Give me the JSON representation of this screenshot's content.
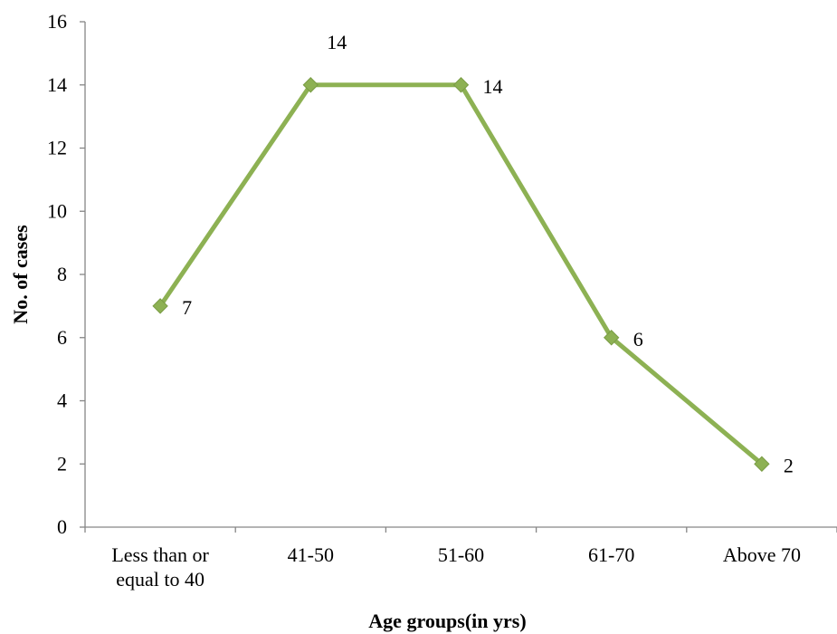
{
  "chart_data": {
    "type": "line",
    "categories": [
      [
        "Less than or",
        "equal to 40"
      ],
      [
        "41-50"
      ],
      [
        "51-60"
      ],
      [
        "61-70"
      ],
      [
        "Above 70"
      ]
    ],
    "series": [
      {
        "values": [
          7,
          14,
          14,
          6,
          2
        ],
        "color": "#8DB153",
        "marker": "diamond"
      }
    ],
    "data_labels": [
      "7",
      "14",
      "14",
      "6",
      "2"
    ],
    "xlabel": "Age groups(in yrs)",
    "ylabel": "No. of cases",
    "ylim": [
      0,
      16
    ],
    "yticks": [
      0,
      2,
      4,
      6,
      8,
      10,
      12,
      14,
      16
    ],
    "grid": false,
    "legend": "none",
    "axis_color": "#868686"
  }
}
